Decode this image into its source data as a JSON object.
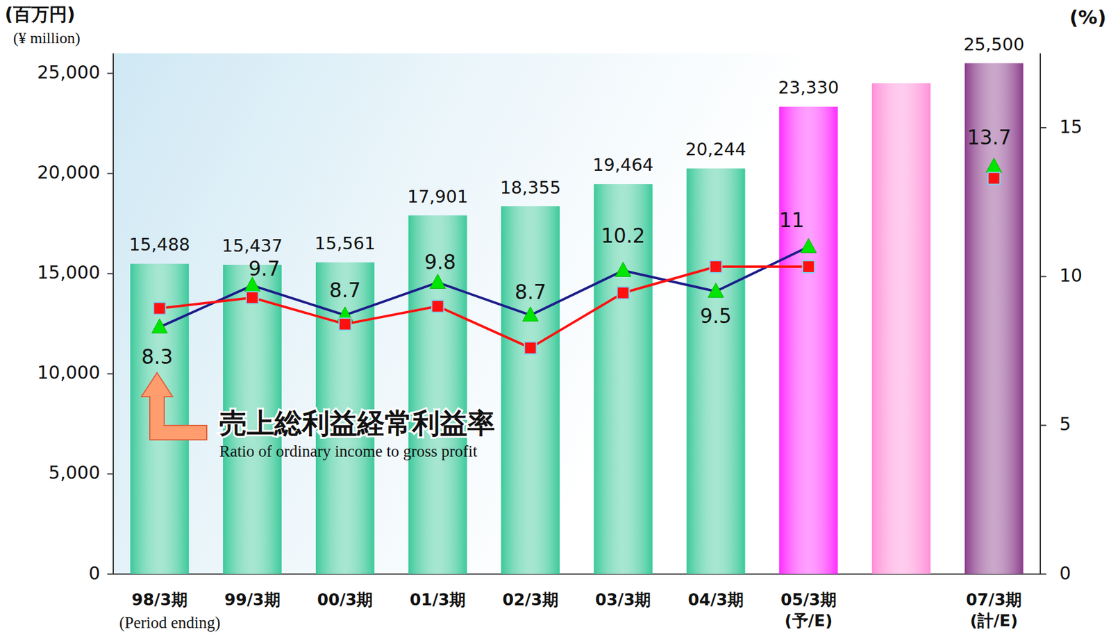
{
  "chart_data": {
    "type": "bar",
    "y_label": "(百万円)",
    "y_label_en": "(¥ million)",
    "y2_label": "(%)",
    "x_label": "(Period ending)",
    "annotation": "Ratio of ordinary income to gross profit",
    "categories": [
      "98/3期",
      "99/3期",
      "00/3期",
      "01/3期",
      "02/3期",
      "03/3期",
      "04/3期",
      "05/3期\n(予/E)",
      null,
      "07/3期\n(計/E)"
    ],
    "ylim": [
      0,
      26000
    ],
    "yticks": [
      0,
      {
        "value": 5000,
        "label": "5,000"
      },
      {
        "value": 10000,
        "label": "10,000"
      },
      {
        "value": 15000,
        "label": "15,000"
      },
      {
        "value": 20000,
        "label": "20,000"
      },
      {
        "value": 25000,
        "label": "25,000"
      }
    ],
    "y2lim": [
      0,
      17.5
    ],
    "y2ticks": [
      0,
      5,
      10,
      15
    ],
    "grid": false,
    "series": [
      {
        "type": "bar",
        "values": [
          15488,
          15437,
          15561,
          17901,
          18355,
          19464,
          20244,
          23330,
          24500,
          25500
        ],
        "value_labels": [
          "15,488",
          "15,437",
          "15,561",
          "17,901",
          "18,355",
          "19,464",
          "20,244",
          "23,330",
          null,
          "25,500"
        ],
        "colors": [
          "#3cc99a",
          "#3cc99a",
          "#3cc99a",
          "#3cc99a",
          "#3cc99a",
          "#3cc99a",
          "#3cc99a",
          "#ff2bff",
          "#ff8fd8",
          "#8a3d8a"
        ],
        "data_labels": true
      },
      {
        "name": "売上総利益経常利益率",
        "type": "line",
        "axis": "y2",
        "color": "#1c1c8a",
        "marker": "triangle",
        "values": [
          8.3,
          9.7,
          8.7,
          9.8,
          8.7,
          10.2,
          9.5,
          11,
          null,
          13.7
        ],
        "data_labels": true
      },
      {
        "type": "line",
        "axis": "y2",
        "color": "#ff1010",
        "marker": "square",
        "values": [
          8.93,
          9.29,
          8.4,
          9.0,
          7.6,
          9.45,
          10.33,
          10.33,
          null,
          13.3
        ]
      }
    ]
  }
}
